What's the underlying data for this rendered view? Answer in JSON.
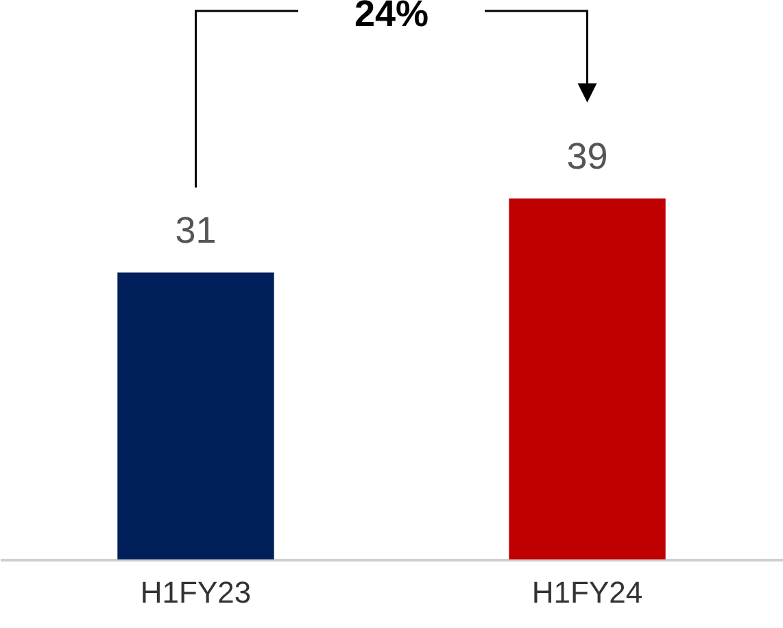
{
  "chart_data": {
    "type": "bar",
    "categories": [
      "H1FY23",
      "H1FY24"
    ],
    "values": [
      31,
      39
    ],
    "colors": [
      "#001f5b",
      "#c00000"
    ],
    "data_labels": true,
    "annotations": [
      "24%"
    ]
  }
}
